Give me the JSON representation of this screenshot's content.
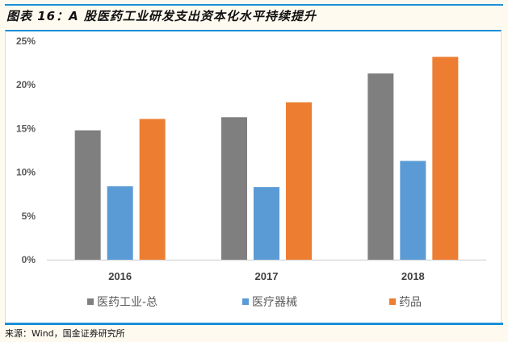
{
  "title": "图表 16：A 股医药工业研发支出资本化水平持续提升",
  "source": "来源：Wind，国金证券研究所",
  "chart_data": {
    "type": "bar",
    "title": "图表 16：A 股医药工业研发支出资本化水平持续提升",
    "categories": [
      "2016",
      "2017",
      "2018"
    ],
    "series": [
      {
        "name": "医药工业-总",
        "color": "#7f7f7f",
        "values": [
          14.8,
          16.3,
          21.3
        ]
      },
      {
        "name": "医疗器械",
        "color": "#5b9bd5",
        "values": [
          8.4,
          8.3,
          11.3
        ]
      },
      {
        "name": "药品",
        "color": "#ed7d31",
        "values": [
          16.1,
          18.0,
          23.2
        ]
      }
    ],
    "ylim": [
      0,
      25
    ],
    "yticks": [
      "0%",
      "5%",
      "10%",
      "15%",
      "20%",
      "25%"
    ],
    "xlabel": "",
    "ylabel": "",
    "grid": false,
    "legend": "bottom"
  }
}
